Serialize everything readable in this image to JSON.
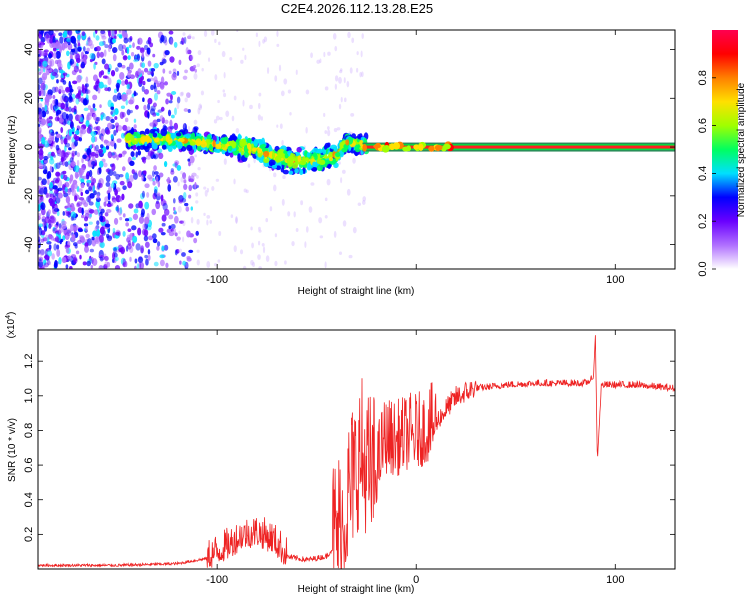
{
  "title": "C2E4.2026.112.13.28.E25",
  "chart_data": [
    {
      "type": "heatmap",
      "name": "spectrogram",
      "xlabel": "Height of straight line (km)",
      "ylabel": "Frequency (Hz)",
      "xlim": [
        -190,
        130
      ],
      "ylim": [
        -50,
        48
      ],
      "x_ticks": [
        -100,
        0,
        100
      ],
      "x_tick_labels": [
        "-100",
        "",
        "100"
      ],
      "y_ticks": [
        -40,
        -20,
        0,
        20,
        40
      ],
      "y_tick_labels": [
        "-40",
        "-20",
        "0",
        "20",
        "40"
      ],
      "colorbar": {
        "label": "Normalized spectral amplitude",
        "range": [
          0,
          1
        ],
        "ticks": [
          0.0,
          0.2,
          0.4,
          0.6,
          0.8
        ],
        "tick_labels": [
          "0.0",
          "0.2",
          "0.4",
          "0.6",
          "0.8"
        ],
        "colors": [
          "#ffffff",
          "#b070ff",
          "#6a00ff",
          "#0000ff",
          "#00e0ff",
          "#00ff60",
          "#a0ff00",
          "#ffe000",
          "#ff8000",
          "#ff0000",
          "#ff0050"
        ]
      },
      "features": {
        "carrier_line_frequency": 0,
        "carrier_line_start": -27,
        "bright_band": [
          {
            "x": -140,
            "f": 3
          },
          {
            "x": -120,
            "f": 3
          },
          {
            "x": -100,
            "f": 1
          },
          {
            "x": -85,
            "f": 0
          },
          {
            "x": -70,
            "f": -4
          },
          {
            "x": -60,
            "f": -6
          },
          {
            "x": -50,
            "f": -5
          },
          {
            "x": -40,
            "f": -3
          },
          {
            "x": -35,
            "f": 2
          },
          {
            "x": -28,
            "f": 1
          },
          {
            "x": -15,
            "f": 1
          },
          {
            "x": 0,
            "f": 0
          }
        ]
      }
    },
    {
      "type": "line",
      "name": "snr",
      "xlabel": "Height of straight line (km)",
      "ylabel": "SNR (10 * v/v)",
      "y_scale_note": "(x10",
      "y_scale_exponent": "4",
      "xlim": [
        -190,
        130
      ],
      "ylim": [
        0,
        1.38
      ],
      "x_ticks": [
        -100,
        0,
        100
      ],
      "x_tick_labels": [
        "-100",
        "0",
        "100"
      ],
      "y_ticks": [
        0.2,
        0.4,
        0.6,
        0.8,
        1.0,
        1.2
      ],
      "y_tick_labels": [
        "0.2",
        "0.4",
        "0.6",
        "0.8",
        "1.0",
        "1.2"
      ],
      "series": [
        {
          "name": "SNR",
          "color": "#ee2222",
          "points": [
            [
              -190,
              0.02
            ],
            [
              -150,
              0.02
            ],
            [
              -120,
              0.03
            ],
            [
              -105,
              0.06
            ],
            [
              -95,
              0.12
            ],
            [
              -88,
              0.18
            ],
            [
              -80,
              0.2
            ],
            [
              -72,
              0.16
            ],
            [
              -65,
              0.07
            ],
            [
              -55,
              0.05
            ],
            [
              -45,
              0.07
            ],
            [
              -38,
              0.18
            ],
            [
              -33,
              0.4
            ],
            [
              -28,
              0.6
            ],
            [
              -22,
              0.45
            ],
            [
              -16,
              0.72
            ],
            [
              -10,
              0.7
            ],
            [
              -4,
              0.74
            ],
            [
              2,
              0.75
            ],
            [
              8,
              0.8
            ],
            [
              14,
              0.9
            ],
            [
              20,
              0.98
            ],
            [
              30,
              1.04
            ],
            [
              45,
              1.06
            ],
            [
              60,
              1.07
            ],
            [
              75,
              1.07
            ],
            [
              85,
              1.07
            ],
            [
              89,
              1.1
            ],
            [
              90,
              1.35
            ],
            [
              91,
              0.62
            ],
            [
              93,
              1.06
            ],
            [
              110,
              1.06
            ],
            [
              130,
              1.04
            ]
          ],
          "noise": [
            {
              "from": -190,
              "to": -105,
              "amp": 0.01
            },
            {
              "from": -105,
              "to": -65,
              "amp": 0.12
            },
            {
              "from": -65,
              "to": -42,
              "amp": 0.02
            },
            {
              "from": -42,
              "to": -20,
              "amp": 0.55
            },
            {
              "from": -20,
              "to": 10,
              "amp": 0.28
            },
            {
              "from": 10,
              "to": 30,
              "amp": 0.08
            },
            {
              "from": 30,
              "to": 130,
              "amp": 0.025
            }
          ]
        }
      ]
    }
  ]
}
